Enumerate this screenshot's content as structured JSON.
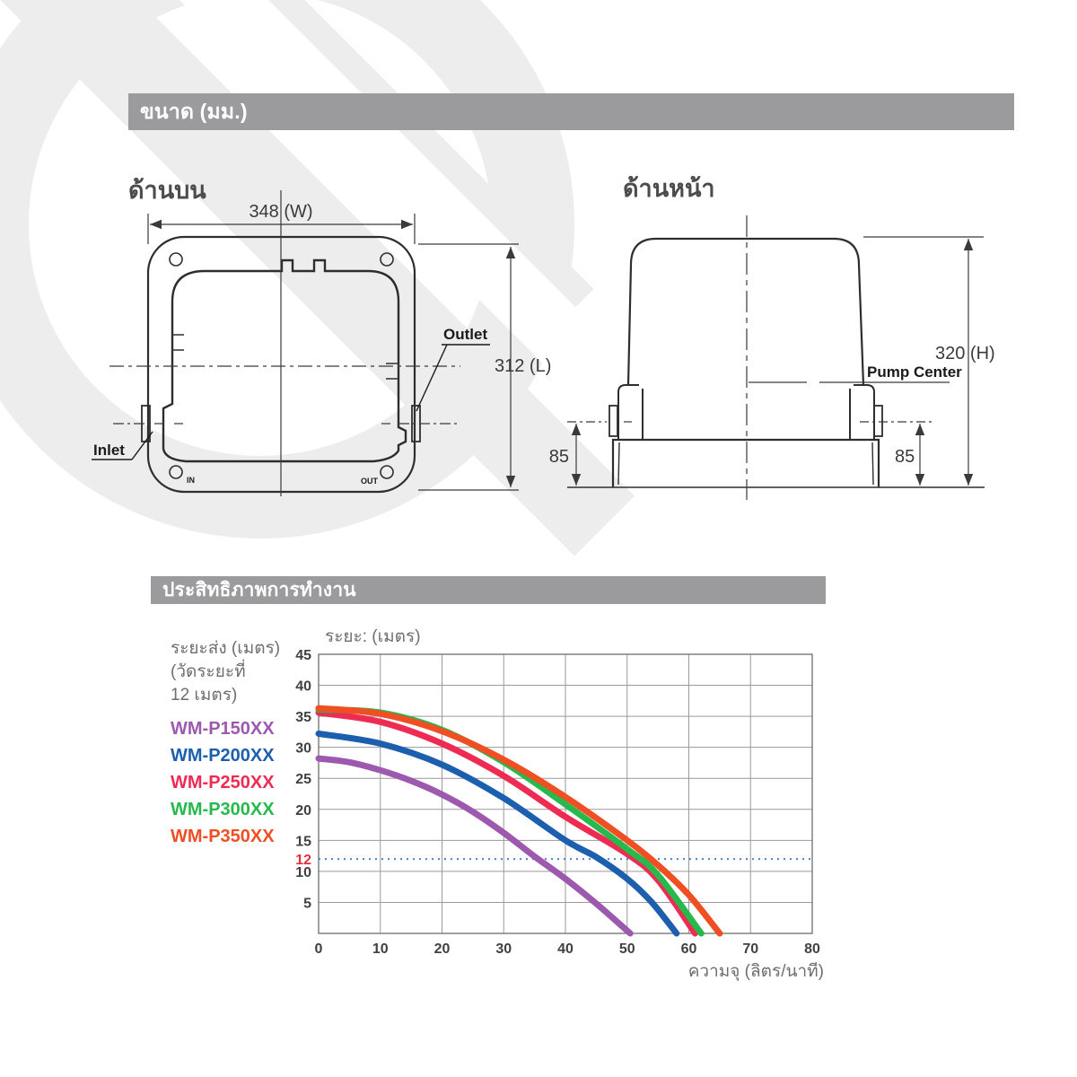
{
  "sections": {
    "dimensions": {
      "title": "ขนาด (มม.)",
      "top_view": {
        "title": "ด้านบน",
        "width_label": "348 (W)",
        "length_label": "312 (L)",
        "outlet_label": "Outlet",
        "inlet_label": "Inlet",
        "in_label": "IN",
        "out_label": "OUT"
      },
      "front_view": {
        "title": "ด้านหน้า",
        "height_label": "320 (H)",
        "pump_center_label": "Pump Center",
        "left_offset_label": "85",
        "right_offset_label": "85"
      }
    },
    "performance": {
      "title": "ประสิทธิภาพการทำงาน"
    }
  },
  "chart_data": {
    "type": "line",
    "title": "",
    "ylabel": "ระยะ: (เมตร)",
    "xlabel": "ความจุ (ลิตร/นาที)",
    "legend_note": [
      "ระยะส่ง (เมตร)",
      "(วัดระยะที่",
      "12 เมตร)"
    ],
    "xlim": [
      0,
      80
    ],
    "ylim": [
      0,
      45
    ],
    "x_tick_step": 10,
    "y_tick_step": 5,
    "grid": true,
    "legend_position": "left",
    "reference_line": {
      "value": 12,
      "label": "12",
      "label_color": "#e8303a",
      "line_color": "#4a7fd0",
      "style": "dotted"
    },
    "series": [
      {
        "name": "WM-P150XX",
        "color": "#9c59ae",
        "points": [
          [
            0,
            28.2
          ],
          [
            5,
            27.6
          ],
          [
            10,
            26.3
          ],
          [
            15,
            24.6
          ],
          [
            20,
            22.4
          ],
          [
            25,
            19.6
          ],
          [
            30,
            16.2
          ],
          [
            35,
            12.4
          ],
          [
            40,
            8.8
          ],
          [
            45,
            4.8
          ],
          [
            50.5,
            0
          ]
        ]
      },
      {
        "name": "WM-P200XX",
        "color": "#1c5fae",
        "points": [
          [
            0,
            32.2
          ],
          [
            10,
            30.6
          ],
          [
            20,
            27.2
          ],
          [
            30,
            21.8
          ],
          [
            40,
            15
          ],
          [
            45,
            12.3
          ],
          [
            50,
            8.8
          ],
          [
            54,
            5
          ],
          [
            58,
            0
          ]
        ]
      },
      {
        "name": "WM-P250XX",
        "color": "#ee2b52",
        "points": [
          [
            0,
            35.6
          ],
          [
            10,
            34.1
          ],
          [
            20,
            30.6
          ],
          [
            30,
            25.4
          ],
          [
            40,
            18.8
          ],
          [
            50,
            12.8
          ],
          [
            55,
            8.6
          ],
          [
            61,
            0
          ]
        ]
      },
      {
        "name": "WM-P300XX",
        "color": "#27b94c",
        "points": [
          [
            0,
            36.1
          ],
          [
            10,
            35.6
          ],
          [
            20,
            32.8
          ],
          [
            30,
            27.6
          ],
          [
            40,
            20.8
          ],
          [
            50,
            13.6
          ],
          [
            55,
            9.4
          ],
          [
            62,
            0
          ]
        ]
      },
      {
        "name": "WM-P350XX",
        "color": "#f04e23",
        "points": [
          [
            0,
            36.3
          ],
          [
            10,
            35.4
          ],
          [
            20,
            32.6
          ],
          [
            30,
            28
          ],
          [
            40,
            22
          ],
          [
            50,
            15
          ],
          [
            55,
            11
          ],
          [
            60,
            6.2
          ],
          [
            65,
            0
          ]
        ]
      }
    ]
  },
  "theme": {
    "section_bar_bg": "#9b9b9d",
    "section_bar_text": "#ffffff",
    "drawing_line": "#2e2e2e",
    "grid_line": "#9a9a9a",
    "axis_text": "#414042",
    "muted_text": "#6d6e71"
  }
}
